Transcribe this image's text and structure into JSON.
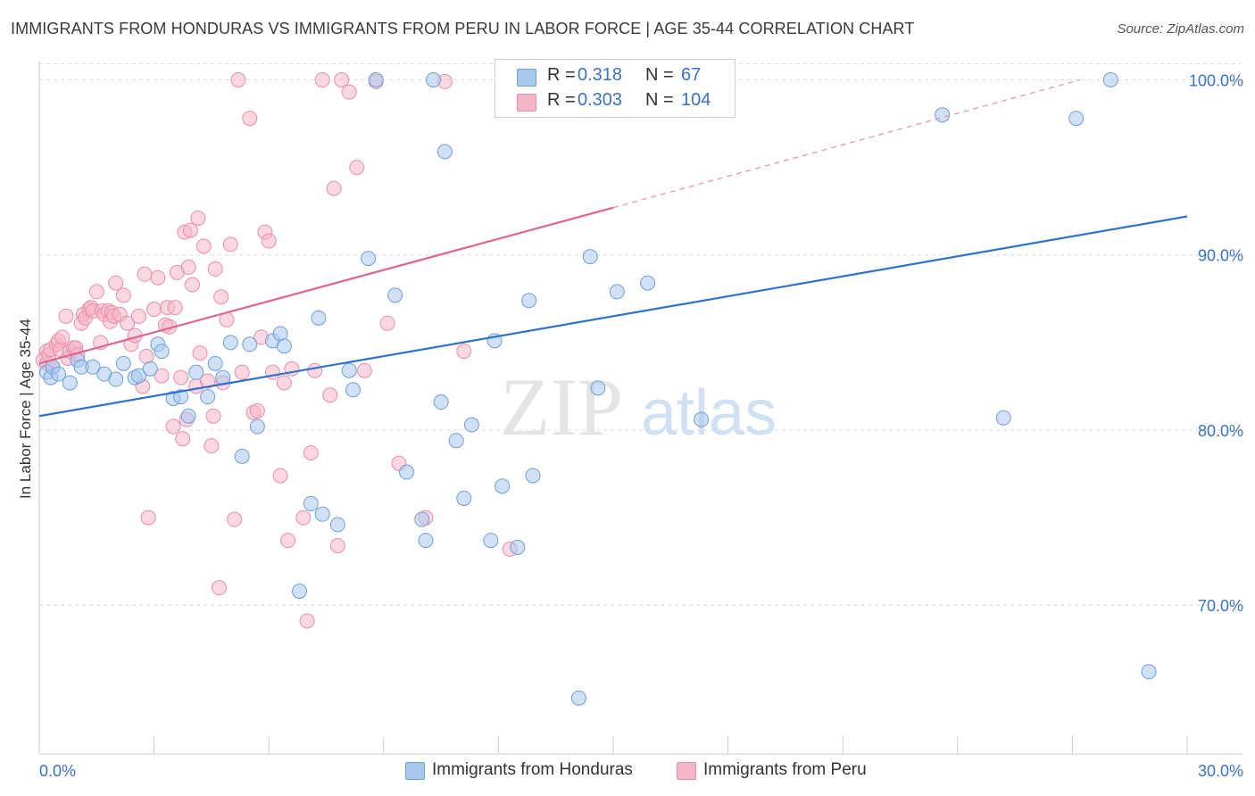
{
  "title": "IMMIGRANTS FROM HONDURAS VS IMMIGRANTS FROM PERU IN LABOR FORCE | AGE 35-44 CORRELATION CHART",
  "source": "Source: ZipAtlas.com",
  "watermark": {
    "zip": "ZIP",
    "atlas": "atlas"
  },
  "legend": {
    "r_label": "R =",
    "n_label": "N =",
    "honduras": {
      "r": "0.318",
      "n": "67"
    },
    "peru": {
      "r": "0.303",
      "n": "104"
    }
  },
  "bottom_legend": {
    "honduras": "Immigrants from Honduras",
    "peru": "Immigrants from Peru"
  },
  "colors": {
    "honduras_fill": "#a9c8ef",
    "honduras_stroke": "#6f9fd9",
    "honduras_line": "#2f72cc",
    "peru_fill": "#f5b6c9",
    "peru_stroke": "#e98eab",
    "peru_line": "#e06690",
    "tick_label": "#3a72c4",
    "grid": "#dcdcdc"
  },
  "chart_data": {
    "type": "scatter",
    "title": "IMMIGRANTS FROM HONDURAS VS IMMIGRANTS FROM PERU IN LABOR FORCE | AGE 35-44 CORRELATION CHART",
    "xlabel": "",
    "ylabel": "In Labor Force | Age 35-44",
    "xlim": [
      0,
      30
    ],
    "ylim": [
      61.5,
      101.5
    ],
    "x_tick_labels": [
      "0.0%",
      "30.0%"
    ],
    "y_ticks": [
      70,
      80,
      90,
      100
    ],
    "y_tick_labels": [
      "70.0%",
      "80.0%",
      "90.0%",
      "100.0%"
    ],
    "series": [
      {
        "name": "Immigrants from Honduras",
        "r": 0.318,
        "n": 67,
        "points": [
          [
            0.2,
            83.3
          ],
          [
            0.3,
            83.0
          ],
          [
            0.35,
            83.6
          ],
          [
            0.5,
            83.2
          ],
          [
            0.8,
            82.7
          ],
          [
            1.0,
            84.0
          ],
          [
            1.1,
            83.6
          ],
          [
            1.4,
            83.6
          ],
          [
            1.7,
            83.2
          ],
          [
            2.0,
            82.9
          ],
          [
            2.2,
            83.8
          ],
          [
            2.5,
            83.0
          ],
          [
            2.6,
            83.1
          ],
          [
            2.9,
            83.5
          ],
          [
            3.1,
            84.9
          ],
          [
            3.2,
            84.5
          ],
          [
            3.5,
            81.8
          ],
          [
            3.7,
            81.9
          ],
          [
            3.9,
            80.8
          ],
          [
            4.1,
            83.3
          ],
          [
            4.4,
            81.9
          ],
          [
            4.6,
            83.8
          ],
          [
            4.8,
            83.0
          ],
          [
            5.0,
            85.0
          ],
          [
            5.3,
            78.5
          ],
          [
            5.5,
            84.9
          ],
          [
            5.7,
            80.2
          ],
          [
            6.1,
            85.1
          ],
          [
            6.3,
            85.5
          ],
          [
            6.4,
            84.8
          ],
          [
            6.8,
            70.8
          ],
          [
            7.1,
            75.8
          ],
          [
            7.3,
            86.4
          ],
          [
            7.4,
            75.2
          ],
          [
            7.8,
            74.6
          ],
          [
            8.1,
            83.4
          ],
          [
            8.2,
            82.3
          ],
          [
            8.6,
            89.8
          ],
          [
            8.8,
            100.0
          ],
          [
            9.3,
            87.7
          ],
          [
            9.6,
            77.6
          ],
          [
            10.0,
            74.9
          ],
          [
            10.1,
            73.7
          ],
          [
            10.3,
            100.0
          ],
          [
            10.5,
            81.6
          ],
          [
            10.6,
            95.9
          ],
          [
            10.9,
            79.4
          ],
          [
            11.1,
            76.1
          ],
          [
            11.3,
            80.3
          ],
          [
            11.8,
            73.7
          ],
          [
            11.9,
            85.1
          ],
          [
            12.1,
            76.8
          ],
          [
            12.5,
            73.3
          ],
          [
            12.8,
            87.4
          ],
          [
            12.9,
            77.4
          ],
          [
            14.1,
            64.7
          ],
          [
            14.3,
            100.0
          ],
          [
            14.4,
            89.9
          ],
          [
            14.6,
            82.4
          ],
          [
            15.1,
            87.9
          ],
          [
            15.9,
            88.4
          ],
          [
            17.3,
            80.6
          ],
          [
            23.6,
            98.0
          ],
          [
            25.2,
            80.7
          ],
          [
            27.1,
            97.8
          ],
          [
            28.0,
            100.0
          ],
          [
            29.0,
            66.2
          ]
        ],
        "trend": {
          "x": [
            0,
            30
          ],
          "y": [
            80.8,
            92.2
          ]
        }
      },
      {
        "name": "Immigrants from Peru",
        "r": 0.303,
        "n": 104,
        "points": [
          [
            0.1,
            84.0
          ],
          [
            0.2,
            84.5
          ],
          [
            0.2,
            83.8
          ],
          [
            0.25,
            84.3
          ],
          [
            0.3,
            84.6
          ],
          [
            0.35,
            83.6
          ],
          [
            0.45,
            84.9
          ],
          [
            0.5,
            85.1
          ],
          [
            0.55,
            84.6
          ],
          [
            0.6,
            85.3
          ],
          [
            0.7,
            86.5
          ],
          [
            0.75,
            84.1
          ],
          [
            0.8,
            84.5
          ],
          [
            0.9,
            84.7
          ],
          [
            0.95,
            84.7
          ],
          [
            1.0,
            84.3
          ],
          [
            1.1,
            86.1
          ],
          [
            1.15,
            86.6
          ],
          [
            1.2,
            86.4
          ],
          [
            1.3,
            86.9
          ],
          [
            1.35,
            87.0
          ],
          [
            1.4,
            86.8
          ],
          [
            1.5,
            87.9
          ],
          [
            1.6,
            85.0
          ],
          [
            1.65,
            86.8
          ],
          [
            1.7,
            86.6
          ],
          [
            1.8,
            86.8
          ],
          [
            1.85,
            86.2
          ],
          [
            1.9,
            86.7
          ],
          [
            1.95,
            86.5
          ],
          [
            2.0,
            88.4
          ],
          [
            2.1,
            86.6
          ],
          [
            2.2,
            87.7
          ],
          [
            2.3,
            86.1
          ],
          [
            2.4,
            84.9
          ],
          [
            2.5,
            85.4
          ],
          [
            2.6,
            86.5
          ],
          [
            2.7,
            82.5
          ],
          [
            2.75,
            88.9
          ],
          [
            2.8,
            84.2
          ],
          [
            2.85,
            75.0
          ],
          [
            3.0,
            86.9
          ],
          [
            3.1,
            88.7
          ],
          [
            3.2,
            83.1
          ],
          [
            3.3,
            86.0
          ],
          [
            3.35,
            87.0
          ],
          [
            3.4,
            85.9
          ],
          [
            3.5,
            80.2
          ],
          [
            3.55,
            87.0
          ],
          [
            3.6,
            89.0
          ],
          [
            3.7,
            83.0
          ],
          [
            3.75,
            79.5
          ],
          [
            3.8,
            91.3
          ],
          [
            3.85,
            80.6
          ],
          [
            3.9,
            89.3
          ],
          [
            3.95,
            91.4
          ],
          [
            4.0,
            88.3
          ],
          [
            4.1,
            82.5
          ],
          [
            4.15,
            92.1
          ],
          [
            4.2,
            84.4
          ],
          [
            4.3,
            90.5
          ],
          [
            4.4,
            82.8
          ],
          [
            4.5,
            79.1
          ],
          [
            4.55,
            80.8
          ],
          [
            4.6,
            89.2
          ],
          [
            4.7,
            71.0
          ],
          [
            4.75,
            87.6
          ],
          [
            4.8,
            82.7
          ],
          [
            4.9,
            86.3
          ],
          [
            5.0,
            90.6
          ],
          [
            5.1,
            74.9
          ],
          [
            5.2,
            100.0
          ],
          [
            5.3,
            83.3
          ],
          [
            5.5,
            97.8
          ],
          [
            5.6,
            81.0
          ],
          [
            5.7,
            81.1
          ],
          [
            5.8,
            85.3
          ],
          [
            5.9,
            91.3
          ],
          [
            6.0,
            90.8
          ],
          [
            6.1,
            83.3
          ],
          [
            6.3,
            77.4
          ],
          [
            6.4,
            82.7
          ],
          [
            6.5,
            73.7
          ],
          [
            6.6,
            83.5
          ],
          [
            6.9,
            75.0
          ],
          [
            7.0,
            69.1
          ],
          [
            7.1,
            78.7
          ],
          [
            7.2,
            83.4
          ],
          [
            7.4,
            100.0
          ],
          [
            7.6,
            82.0
          ],
          [
            7.7,
            93.8
          ],
          [
            7.8,
            73.4
          ],
          [
            7.9,
            100.0
          ],
          [
            8.1,
            99.3
          ],
          [
            8.3,
            95.0
          ],
          [
            8.5,
            83.4
          ],
          [
            8.8,
            99.9
          ],
          [
            9.1,
            86.1
          ],
          [
            9.4,
            78.1
          ],
          [
            10.1,
            75.0
          ],
          [
            10.6,
            99.9
          ],
          [
            11.1,
            84.5
          ],
          [
            12.3,
            73.2
          ],
          [
            12.6,
            100.0
          ]
        ],
        "trend": {
          "x": [
            0,
            15
          ],
          "y": [
            83.8,
            92.7
          ]
        },
        "trend_dashed": {
          "x": [
            15,
            27.2
          ],
          "y": [
            92.7,
            100.0
          ]
        }
      }
    ]
  }
}
